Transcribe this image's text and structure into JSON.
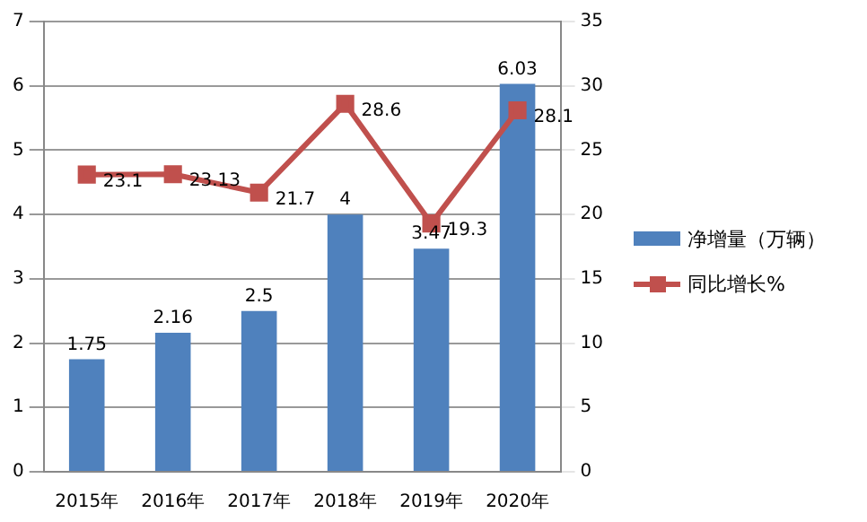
{
  "chart_data": {
    "type": "bar",
    "categories": [
      "2015年",
      "2016年",
      "2017年",
      "2018年",
      "2019年",
      "2020年"
    ],
    "series": [
      {
        "name": "净增量（万辆）",
        "color": "#4f81bd",
        "values": [
          1.75,
          2.16,
          2.5,
          4,
          3.47,
          6.03
        ]
      },
      {
        "name": "同比增长%",
        "type": "line",
        "axis": "y2",
        "color": "#c0504d",
        "values": [
          23.1,
          23.13,
          21.7,
          28.6,
          19.3,
          28.1
        ]
      }
    ],
    "ylim": [
      0,
      7
    ],
    "yticks": [
      0,
      1,
      2,
      3,
      4,
      5,
      6,
      7
    ],
    "y2lim": [
      0,
      35
    ],
    "y2ticks": [
      0,
      5,
      10,
      15,
      20,
      25,
      30,
      35
    ],
    "grid": "y",
    "legend": "right",
    "marker": "square",
    "line_style": "solid",
    "data_labels": true
  }
}
